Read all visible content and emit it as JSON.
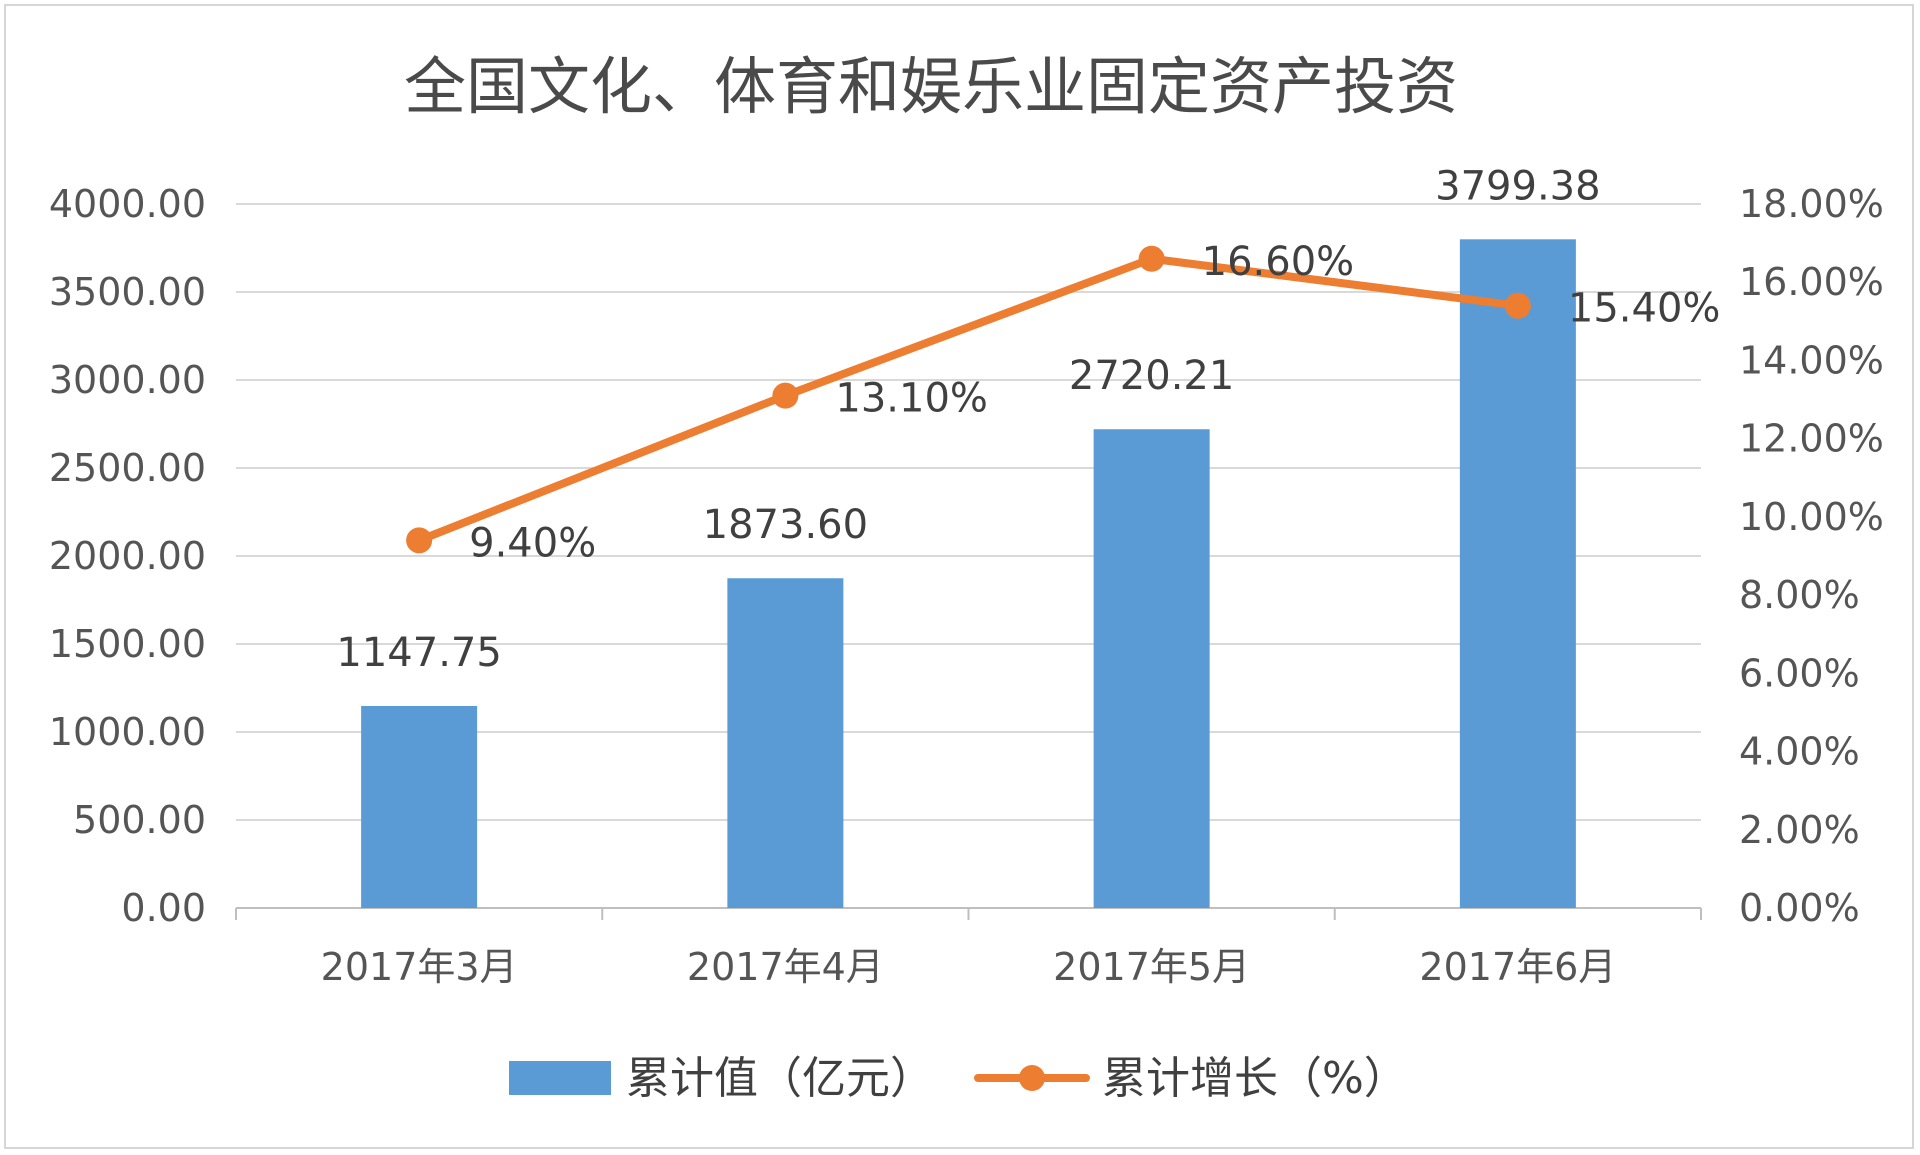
{
  "chart_data": {
    "type": "bar",
    "title": "全国文化、体育和娱乐业固定资产投资",
    "categories": [
      "2017年3月",
      "2017年4月",
      "2017年5月",
      "2017年6月"
    ],
    "series": [
      {
        "name": "累计值（亿元）",
        "type": "bar",
        "axis": "left",
        "color": "#5b9bd5",
        "values": [
          1147.75,
          1873.6,
          2720.21,
          3799.38
        ],
        "labels": [
          "1147.75",
          "1873.60",
          "2720.21",
          "3799.38"
        ]
      },
      {
        "name": "累计增长（%）",
        "type": "line",
        "axis": "right",
        "color": "#ed7d31",
        "values": [
          9.4,
          13.1,
          16.6,
          15.4
        ],
        "labels": [
          "9.40%",
          "13.10%",
          "16.60%",
          "15.40%"
        ]
      }
    ],
    "y_left": {
      "min": 0,
      "max": 4000,
      "step": 500,
      "ticks": [
        "0.00",
        "500.00",
        "1000.00",
        "1500.00",
        "2000.00",
        "2500.00",
        "3000.00",
        "3500.00",
        "4000.00"
      ]
    },
    "y_right": {
      "min": 0,
      "max": 18,
      "step": 2,
      "ticks": [
        "0.00%",
        "2.00%",
        "4.00%",
        "6.00%",
        "8.00%",
        "10.00%",
        "12.00%",
        "14.00%",
        "16.00%",
        "18.00%"
      ]
    },
    "grid": true,
    "legend": "bottom",
    "xlabel": "",
    "ylabel": ""
  }
}
